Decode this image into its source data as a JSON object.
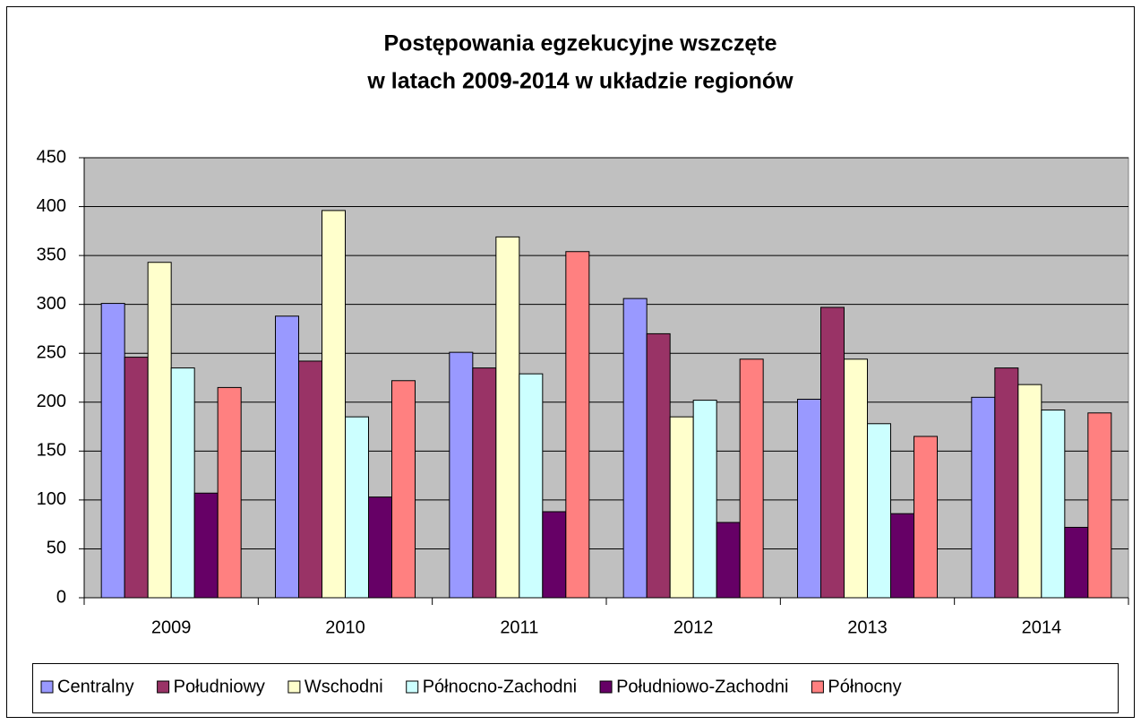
{
  "chart_data": {
    "type": "bar",
    "title": [
      "Postępowania egzekucyjne wszczęte",
      "w  latach 2009-2014 w układzie regionów"
    ],
    "categories": [
      "2009",
      "2010",
      "2011",
      "2012",
      "2013",
      "2014"
    ],
    "series": [
      {
        "name": "Centralny",
        "color": "#9999ff",
        "values": [
          301,
          288,
          251,
          306,
          203,
          205
        ]
      },
      {
        "name": "Południowy",
        "color": "#993366",
        "values": [
          246,
          242,
          235,
          270,
          297,
          235
        ]
      },
      {
        "name": "Wschodni",
        "color": "#ffffcc",
        "values": [
          343,
          396,
          369,
          185,
          244,
          218
        ]
      },
      {
        "name": "Północno-Zachodni",
        "color": "#ccffff",
        "values": [
          235,
          185,
          229,
          202,
          178,
          192
        ]
      },
      {
        "name": "Południowo-Zachodni",
        "color": "#660066",
        "values": [
          107,
          103,
          88,
          77,
          86,
          72
        ]
      },
      {
        "name": "Północny",
        "color": "#ff8080",
        "values": [
          215,
          222,
          354,
          244,
          165,
          189
        ]
      }
    ],
    "ylim": [
      0,
      450
    ],
    "yticks": [
      0,
      50,
      100,
      150,
      200,
      250,
      300,
      350,
      400,
      450
    ],
    "grid": true,
    "legend": "bottom"
  }
}
